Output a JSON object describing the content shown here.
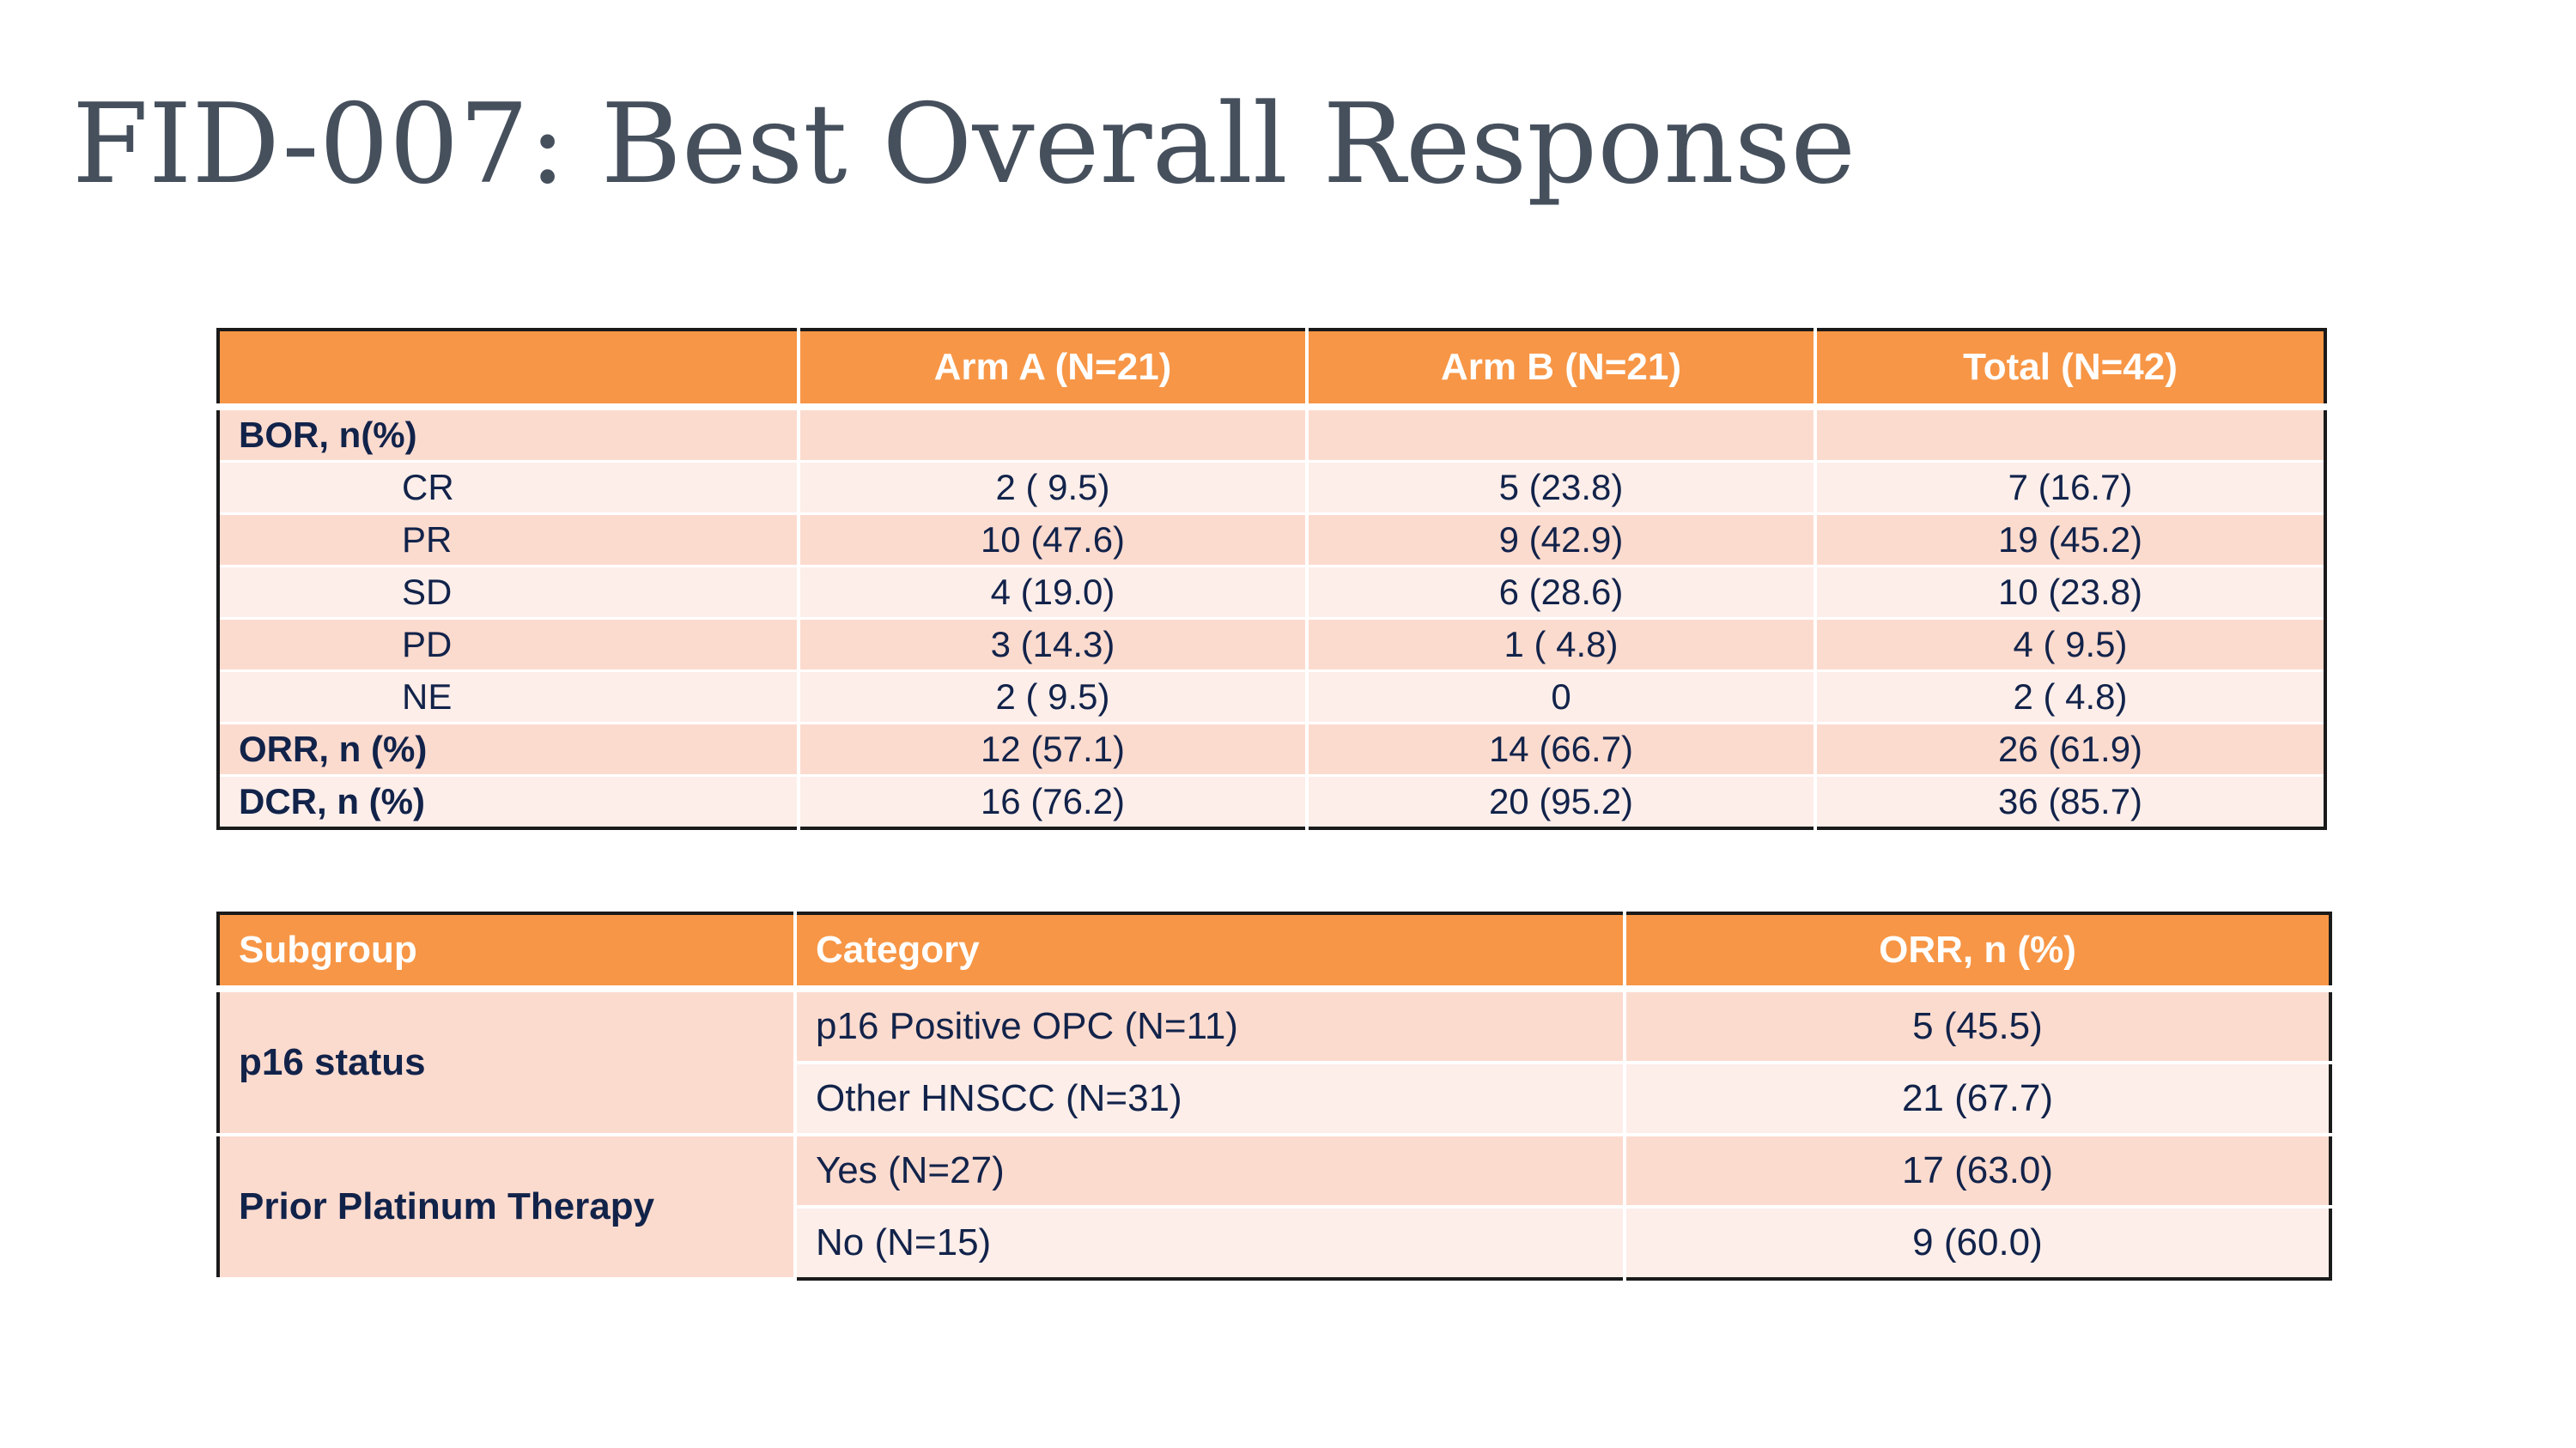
{
  "title": "FID-007: Best Overall Response",
  "bor_table": {
    "headers": [
      "",
      "Arm A (N=21)",
      "Arm B (N=21)",
      "Total (N=42)"
    ],
    "rows": [
      {
        "label": "BOR, n(%)",
        "arm_a": "",
        "arm_b": "",
        "total": ""
      },
      {
        "label": "CR",
        "arm_a": "2 ( 9.5)",
        "arm_b": "5 (23.8)",
        "total": "7 (16.7)"
      },
      {
        "label": "PR",
        "arm_a": "10 (47.6)",
        "arm_b": "9 (42.9)",
        "total": "19 (45.2)"
      },
      {
        "label": "SD",
        "arm_a": "4 (19.0)",
        "arm_b": "6 (28.6)",
        "total": "10 (23.8)"
      },
      {
        "label": "PD",
        "arm_a": "3 (14.3)",
        "arm_b": "1 ( 4.8)",
        "total": "4 ( 9.5)"
      },
      {
        "label": "NE",
        "arm_a": "2 ( 9.5)",
        "arm_b": "0",
        "total": "2 ( 4.8)"
      },
      {
        "label": "ORR, n (%)",
        "arm_a": "12 (57.1)",
        "arm_b": "14 (66.7)",
        "total": "26 (61.9)"
      },
      {
        "label": "DCR, n (%)",
        "arm_a": "16 (76.2)",
        "arm_b": "20 (95.2)",
        "total": "36 (85.7)"
      }
    ]
  },
  "subgroup_table": {
    "headers": [
      "Subgroup",
      "Category",
      "ORR, n (%)"
    ],
    "groups": [
      {
        "name": "p16 status",
        "rows": [
          {
            "category": "p16 Positive OPC (N=11)",
            "orr": "5 (45.5)"
          },
          {
            "category": "Other HNSCC (N=31)",
            "orr": "21 (67.7)"
          }
        ]
      },
      {
        "name": "Prior Platinum Therapy",
        "rows": [
          {
            "category": "Yes (N=27)",
            "orr": "17 (63.0)"
          },
          {
            "category": "No (N=15)",
            "orr": "9 (60.0)"
          }
        ]
      }
    ]
  },
  "colors": {
    "header_orange": "#f79646",
    "row_dark": "#fcdbcf",
    "row_light": "#fdeeea",
    "text_navy": "#12234a",
    "title_gray": "#46505d"
  }
}
